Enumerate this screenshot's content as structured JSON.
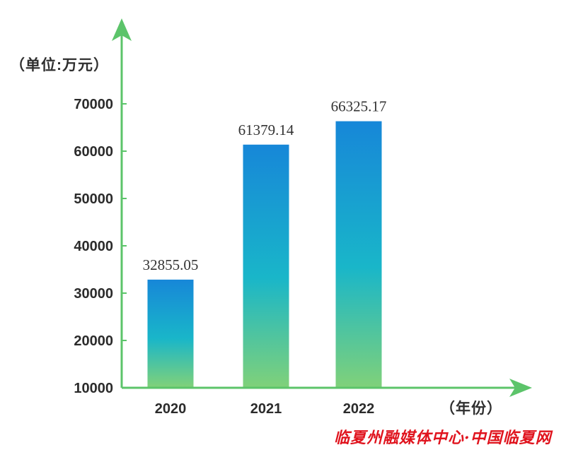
{
  "chart_data": {
    "type": "bar",
    "categories": [
      "2020",
      "2021",
      "2022"
    ],
    "values": [
      32855.05,
      61379.14,
      66325.17
    ],
    "value_labels": [
      "32855.05",
      "61379.14",
      "66325.17"
    ],
    "y_unit_label": "（单位:万元）",
    "x_unit_label": "（年份）",
    "y_ticks": [
      10000,
      20000,
      30000,
      40000,
      50000,
      60000,
      70000
    ],
    "ylim": [
      10000,
      70000
    ],
    "grid": false,
    "legend": "none",
    "colors": {
      "axis": "#5cc46a",
      "bar_top": "#1787d8",
      "bar_mid": "#19b6c9",
      "bar_bottom": "#7fd17a"
    }
  },
  "watermark": "临夏州融媒体中心·中国临夏网"
}
